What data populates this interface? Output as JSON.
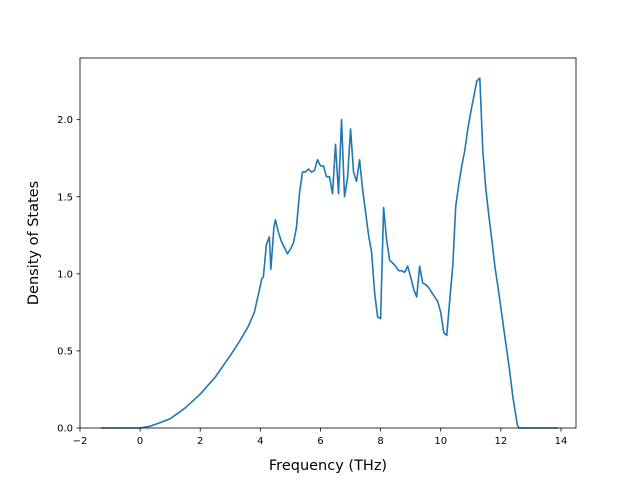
{
  "chart_data": {
    "type": "line",
    "title": "",
    "xlabel": "Frequency (THz)",
    "ylabel": "Density of States",
    "xlim": [
      -2,
      14.5
    ],
    "ylim": [
      0,
      2.4
    ],
    "xticks": [
      -2,
      0,
      2,
      4,
      6,
      8,
      10,
      12,
      14
    ],
    "xtick_labels": [
      "−2",
      "0",
      "2",
      "4",
      "6",
      "8",
      "10",
      "12",
      "14"
    ],
    "yticks": [
      0,
      0.5,
      1.0,
      1.5,
      2.0
    ],
    "ytick_labels": [
      "0.0",
      "0.5",
      "1.0",
      "1.5",
      "2.0"
    ],
    "grid": false,
    "series": [
      {
        "name": "",
        "color": "#1f77b4",
        "x": [
          -1.3,
          -0.5,
          0.0,
          0.3,
          0.6,
          1.0,
          1.5,
          2.0,
          2.5,
          3.0,
          3.3,
          3.6,
          3.8,
          3.95,
          4.05,
          4.1,
          4.2,
          4.3,
          4.35,
          4.45,
          4.5,
          4.6,
          4.7,
          4.8,
          4.9,
          5.0,
          5.1,
          5.2,
          5.3,
          5.4,
          5.5,
          5.6,
          5.7,
          5.8,
          5.9,
          6.0,
          6.1,
          6.2,
          6.3,
          6.4,
          6.5,
          6.6,
          6.7,
          6.8,
          6.9,
          7.0,
          7.1,
          7.2,
          7.3,
          7.4,
          7.5,
          7.6,
          7.7,
          7.8,
          7.9,
          8.0,
          8.1,
          8.2,
          8.3,
          8.4,
          8.5,
          8.6,
          8.7,
          8.8,
          8.9,
          9.0,
          9.1,
          9.2,
          9.3,
          9.4,
          9.5,
          9.6,
          9.7,
          9.8,
          9.9,
          10.0,
          10.1,
          10.2,
          10.3,
          10.4,
          10.5,
          10.6,
          10.7,
          10.8,
          10.9,
          11.0,
          11.1,
          11.2,
          11.3,
          11.4,
          11.5,
          11.6,
          11.7,
          11.8,
          11.9,
          12.0,
          12.1,
          12.2,
          12.3,
          12.4,
          12.5,
          12.55,
          12.6,
          12.7,
          13.9
        ],
        "y": [
          0.0,
          0.0,
          0.0,
          0.01,
          0.03,
          0.06,
          0.13,
          0.22,
          0.33,
          0.47,
          0.56,
          0.66,
          0.75,
          0.88,
          0.97,
          0.98,
          1.19,
          1.24,
          1.03,
          1.3,
          1.35,
          1.27,
          1.21,
          1.17,
          1.13,
          1.16,
          1.2,
          1.3,
          1.52,
          1.66,
          1.66,
          1.68,
          1.66,
          1.67,
          1.74,
          1.7,
          1.7,
          1.63,
          1.63,
          1.52,
          1.84,
          1.52,
          2.0,
          1.5,
          1.62,
          1.94,
          1.66,
          1.6,
          1.74,
          1.55,
          1.4,
          1.25,
          1.14,
          0.88,
          0.72,
          0.71,
          1.43,
          1.22,
          1.09,
          1.07,
          1.05,
          1.02,
          1.02,
          1.01,
          1.05,
          0.98,
          0.9,
          0.85,
          1.05,
          0.94,
          0.93,
          0.91,
          0.88,
          0.85,
          0.82,
          0.75,
          0.62,
          0.6,
          0.83,
          1.05,
          1.44,
          1.58,
          1.7,
          1.8,
          1.94,
          2.05,
          2.15,
          2.25,
          2.27,
          1.8,
          1.55,
          1.38,
          1.22,
          1.05,
          0.92,
          0.78,
          0.64,
          0.5,
          0.36,
          0.2,
          0.08,
          0.02,
          0.0,
          0.0,
          0.0
        ]
      }
    ]
  }
}
